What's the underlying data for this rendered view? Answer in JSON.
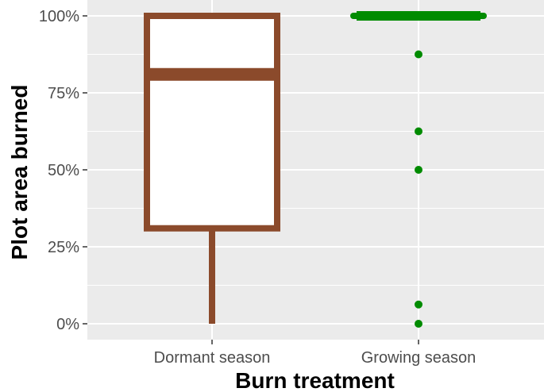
{
  "chart_data": {
    "type": "boxplot",
    "title": "",
    "xlabel": "Burn treatment",
    "ylabel": "Plot area burned",
    "ylim": [
      -5,
      105
    ],
    "yticks": [
      0,
      25,
      50,
      75,
      100
    ],
    "ytick_labels": [
      "0%",
      "25%",
      "50%",
      "75%",
      "100%"
    ],
    "grid": true,
    "panel_background": "#ebebeb",
    "grid_color": "#ffffff",
    "categories": [
      "Dormant season",
      "Growing season"
    ],
    "boxes": [
      {
        "category": "Dormant season",
        "color": "#8b4a2b",
        "fill": "#ffffff",
        "min": 0,
        "q1": 31,
        "median": 81,
        "q3": 100,
        "max": 100,
        "outliers": []
      },
      {
        "category": "Growing season",
        "color": "#008b00",
        "fill": "#ffffff",
        "min": 100,
        "q1": 100,
        "median": 100,
        "q3": 100,
        "max": 100,
        "outliers": [
          87.5,
          62.5,
          50,
          6.25,
          0
        ]
      }
    ]
  }
}
